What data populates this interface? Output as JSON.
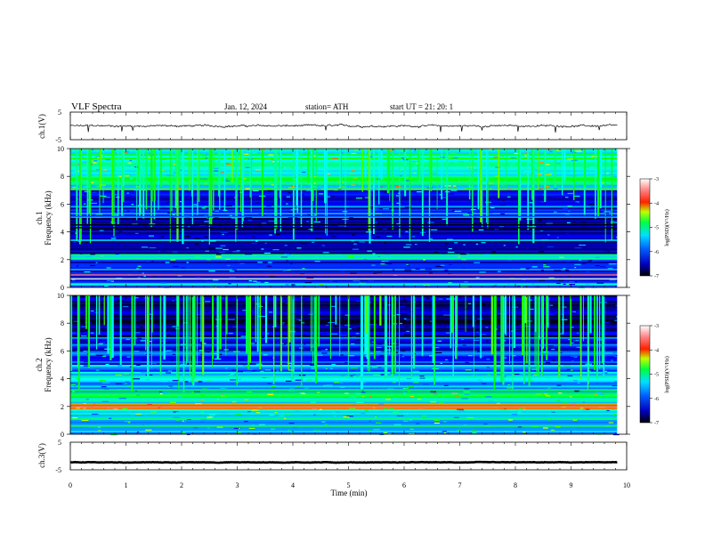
{
  "header": {
    "title": "VLF  Spectra",
    "date": "Jan. 12, 2024",
    "station": "station= ATH",
    "start_ut": "start  UT  =    21: 20: 1"
  },
  "colors": {
    "background": "#ffffff",
    "trace": "#000000",
    "colormap": [
      "#000000",
      "#00007a",
      "#0000ff",
      "#0099ff",
      "#00ffff",
      "#00ff00",
      "#ffff00",
      "#ff0000",
      "#ff6666",
      "#ffffff"
    ]
  },
  "chart_data": [
    {
      "type": "line",
      "name": "ch1-waveform",
      "ylabel": "ch.1(V)",
      "ylim": [
        -5,
        5
      ],
      "yticks": [
        "5",
        "-5"
      ],
      "xlim": [
        0,
        10
      ],
      "data_span_min": 9.83,
      "baseline": 0,
      "noise_amplitude": 0.45,
      "spikes": [
        {
          "t": 0.33,
          "y": -2.2
        },
        {
          "t": 0.92,
          "y": -2.0
        },
        {
          "t": 1.12,
          "y": -1.7
        },
        {
          "t": 4.59,
          "y": -1.6
        },
        {
          "t": 6.65,
          "y": -2.2
        },
        {
          "t": 7.03,
          "y": -2.0
        },
        {
          "t": 7.4,
          "y": -1.6
        },
        {
          "t": 8.05,
          "y": -2.1
        },
        {
          "t": 8.72,
          "y": -2.4
        },
        {
          "t": 9.5,
          "y": -1.5
        }
      ]
    },
    {
      "type": "heatmap",
      "name": "ch1-spectrogram",
      "ylabel": "ch.1\nFrequency  (kHz)",
      "xlim": [
        0,
        10
      ],
      "ylim": [
        0,
        10
      ],
      "yticks": [
        "0",
        "2",
        "4",
        "6",
        "8",
        "10"
      ],
      "data_span_min": 9.83,
      "colorbar": {
        "label": "log(PSD)(V²/Hz)",
        "range": [
          -7,
          -3
        ],
        "ticks": [
          "-3",
          "-4",
          "-5",
          "-6",
          "-7"
        ]
      },
      "bands": [
        {
          "f_low": 7.0,
          "f_high": 10.0,
          "log_psd": -5.1
        },
        {
          "f_low": 5.0,
          "f_high": 7.0,
          "log_psd": -6.0
        },
        {
          "f_low": 2.4,
          "f_high": 5.0,
          "log_psd": -6.3
        },
        {
          "f_low": 2.0,
          "f_high": 2.4,
          "log_psd": -5.2
        },
        {
          "f_low": 0.3,
          "f_high": 2.0,
          "log_psd": -6.0
        },
        {
          "f_low": 0.0,
          "f_high": 0.3,
          "log_psd": -5.6
        }
      ],
      "lines": [
        {
          "f": 0.6,
          "log_psd": -3.2
        },
        {
          "f": 0.9,
          "log_psd": -3.4
        },
        {
          "f": 2.1,
          "log_psd": -5.0
        },
        {
          "f": 2.3,
          "log_psd": -5.0
        },
        {
          "f": 3.4,
          "log_psd": -5.2
        },
        {
          "f": 4.3,
          "log_psd": -7.0
        },
        {
          "f": 4.5,
          "log_psd": -7.0
        },
        {
          "f": 5.1,
          "log_psd": -5.8
        }
      ],
      "spherics_per_min": 14
    },
    {
      "type": "heatmap",
      "name": "ch2-spectrogram",
      "ylabel": "ch.2\nFrequency  (kHz)",
      "xlim": [
        0,
        10
      ],
      "ylim": [
        0,
        10
      ],
      "yticks": [
        "0",
        "2",
        "4",
        "6",
        "8",
        "10"
      ],
      "data_span_min": 9.83,
      "colorbar": {
        "label": "log(PSD)(V²/Hz)",
        "range": [
          -7,
          -3
        ],
        "ticks": [
          "-3",
          "-4",
          "-5",
          "-6",
          "-7"
        ]
      },
      "bands": [
        {
          "f_low": 7.0,
          "f_high": 10.0,
          "log_psd": -6.5
        },
        {
          "f_low": 5.0,
          "f_high": 7.0,
          "log_psd": -6.1
        },
        {
          "f_low": 3.0,
          "f_high": 5.0,
          "log_psd": -5.6
        },
        {
          "f_low": 2.2,
          "f_high": 3.0,
          "log_psd": -5.1
        },
        {
          "f_low": 1.8,
          "f_high": 2.2,
          "log_psd": -4.2
        },
        {
          "f_low": 0.0,
          "f_high": 1.8,
          "log_psd": -5.4
        }
      ],
      "lines": [
        {
          "f": 2.0,
          "log_psd": -3.5
        },
        {
          "f": 2.1,
          "log_psd": -4.0
        },
        {
          "f": 3.2,
          "log_psd": -4.8
        },
        {
          "f": 4.1,
          "log_psd": -5.0
        },
        {
          "f": 0.6,
          "log_psd": -4.7
        }
      ],
      "spherics_per_min": 14
    },
    {
      "type": "line",
      "name": "ch3-waveform",
      "ylabel": "ch.3(V)",
      "ylim": [
        -5,
        5
      ],
      "yticks": [
        "5",
        "-5"
      ],
      "xlim": [
        0,
        10
      ],
      "xticks": [
        "0",
        "1",
        "2",
        "3",
        "4",
        "5",
        "6",
        "7",
        "8",
        "9",
        "10"
      ],
      "xlabel": "Time  (min)",
      "data_span_min": 9.83,
      "baseline": -2.3,
      "noise_amplitude": 0.12
    }
  ]
}
